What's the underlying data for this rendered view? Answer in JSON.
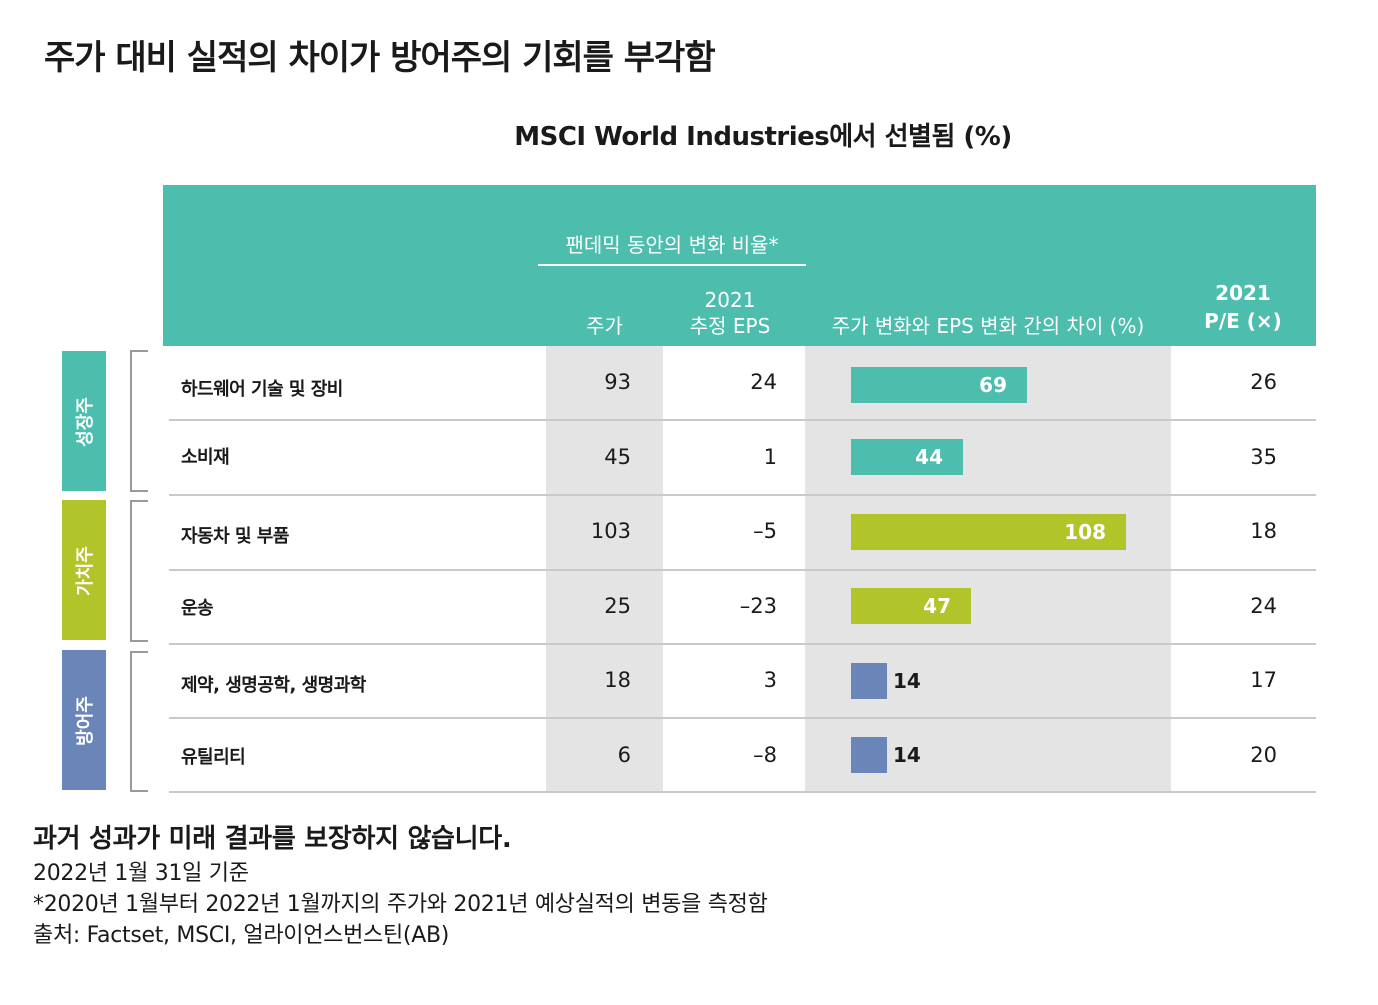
{
  "title": "주가 대비 실적의 차이가 방어주의 기회를 부각함",
  "chart_title": "MSCI World Industries에서 선별됨 (%)",
  "header": {
    "group_label": "팬데믹 동안의 변화 비율*",
    "col_price": "주가",
    "col_eps_year": "2021",
    "col_eps": "추정 EPS",
    "col_diff": "주가 변화와 EPS 변화 간의 차이 (%)",
    "col_pe_year": "2021",
    "col_pe": "P/E (×)"
  },
  "groups": [
    {
      "label": "성장주",
      "color": "#4dbdad"
    },
    {
      "label": "가치주",
      "color": "#b1c42a"
    },
    {
      "label": "방어주",
      "color": "#6a86b9"
    }
  ],
  "chart_data": {
    "type": "table",
    "title": "MSCI World Industries에서 선별됨 (%)",
    "columns": [
      "주가",
      "2021 추정 EPS",
      "주가 변화와 EPS 변화 간의 차이 (%)",
      "2021 P/E (×)"
    ],
    "rows": [
      {
        "category": "하드웨어 기술 및 장비",
        "group": "성장주",
        "price": "93",
        "eps": "24",
        "diff": 69,
        "diff_label": "69",
        "pe": "26"
      },
      {
        "category": "소비재",
        "group": "성장주",
        "price": "45",
        "eps": "1",
        "diff": 44,
        "diff_label": "44",
        "pe": "35"
      },
      {
        "category": "자동차 및 부품",
        "group": "가치주",
        "price": "103",
        "eps": "–5",
        "diff": 108,
        "diff_label": "108",
        "pe": "18"
      },
      {
        "category": "운송",
        "group": "가치주",
        "price": "25",
        "eps": "–23",
        "diff": 47,
        "diff_label": "47",
        "pe": "24"
      },
      {
        "category": "제약, 생명공학, 생명과학",
        "group": "방어주",
        "price": "18",
        "eps": "3",
        "diff": 14,
        "diff_label": "14",
        "pe": "17"
      },
      {
        "category": "유틸리티",
        "group": "방어주",
        "price": "6",
        "eps": "–8",
        "diff": 14,
        "diff_label": "14",
        "pe": "20"
      }
    ],
    "bar_colors": {
      "성장주": "#4dbdad",
      "가치주": "#b1c42a",
      "방어주": "#6a86b9"
    }
  },
  "footnotes": {
    "disclaimer": "과거 성과가 미래 결과를 보장하지 않습니다.",
    "as_of": "2022년 1월 31일 기준",
    "note": "*2020년 1월부터 2022년 1월까지의 주가와 2021년 예상실적의 변동을 측정함",
    "source": "출처: Factset, MSCI, 얼라이언스번스틴(AB)"
  }
}
